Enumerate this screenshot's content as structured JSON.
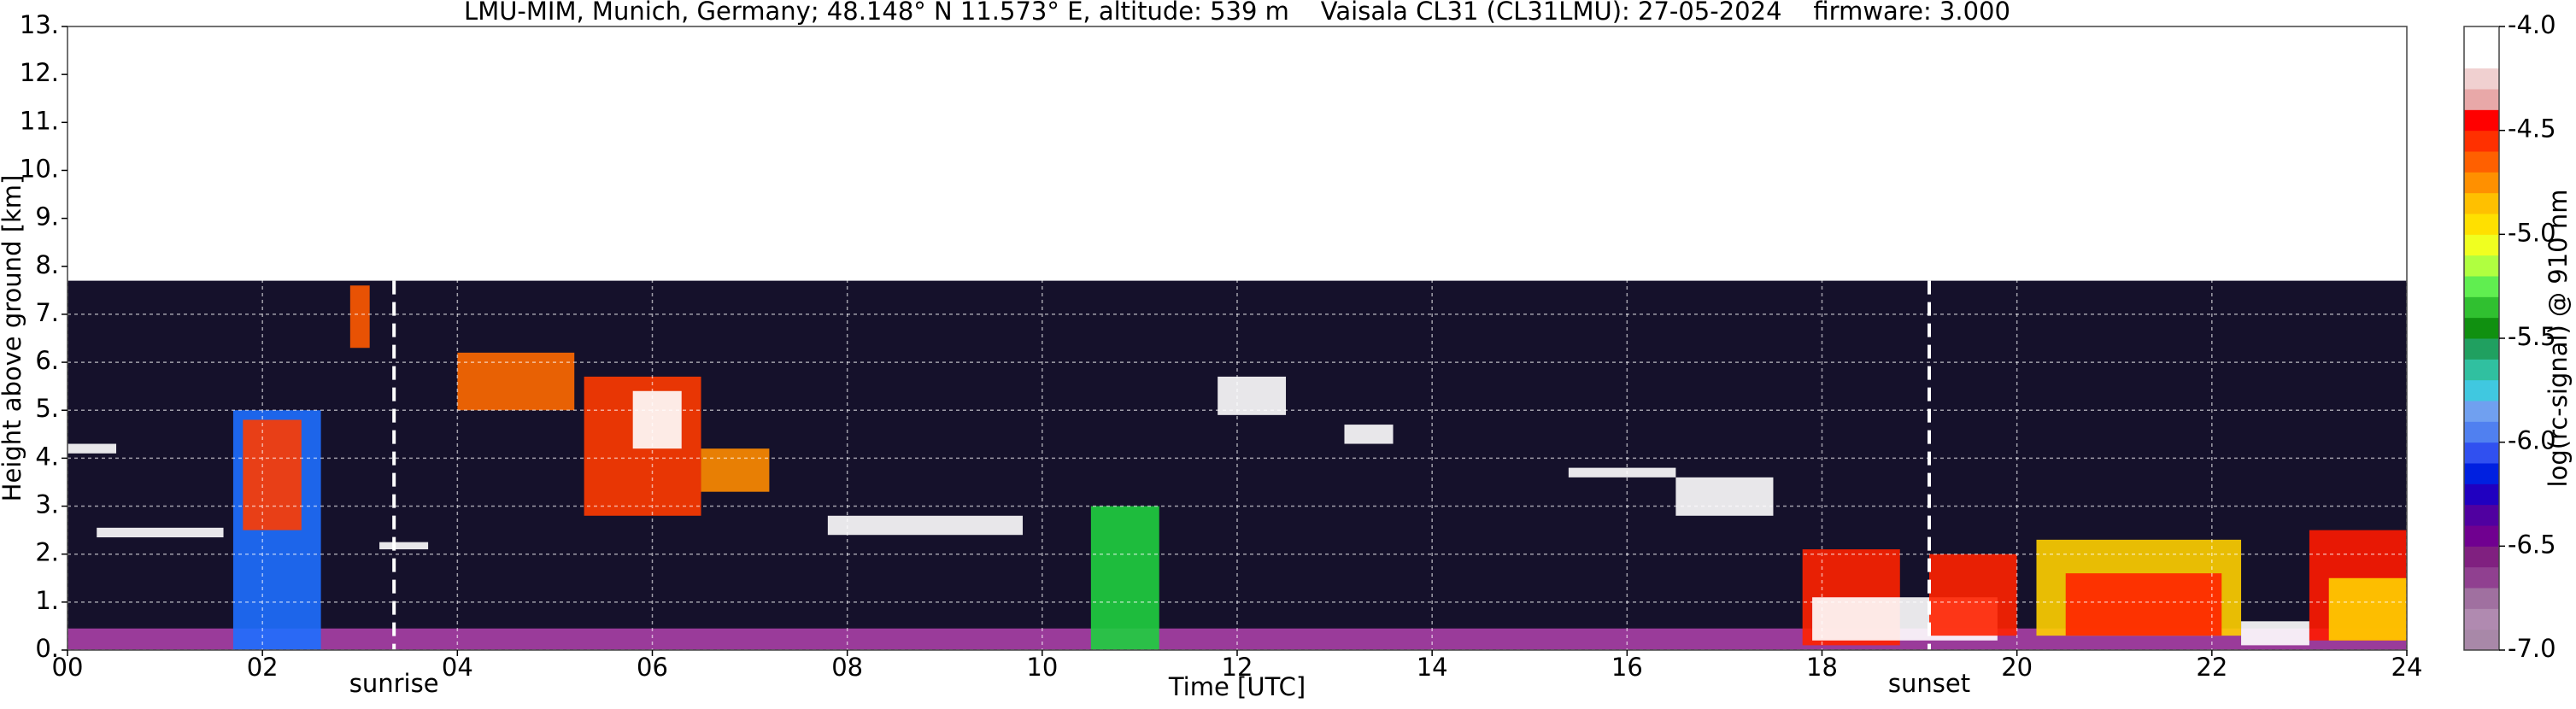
{
  "chart_data": {
    "type": "lidar",
    "title": "LMU-MIM, Munich, Germany; 48.148° N 11.573° E, altitude: 539 m    Vaisala CL31 (CL31LMU): 27-05-2024    firmware: 3.000",
    "xlabel": "Time [UTC]",
    "ylabel": "Height above ground [km]",
    "xlim": [
      0,
      24
    ],
    "xticks": [
      {
        "value": 0,
        "label": "00"
      },
      {
        "value": 2,
        "label": "02"
      },
      {
        "value": 4,
        "label": "04"
      },
      {
        "value": 6,
        "label": "06"
      },
      {
        "value": 8,
        "label": "08"
      },
      {
        "value": 10,
        "label": "10"
      },
      {
        "value": 12,
        "label": "12"
      },
      {
        "value": 14,
        "label": "14"
      },
      {
        "value": 16,
        "label": "16"
      },
      {
        "value": 18,
        "label": "18"
      },
      {
        "value": 20,
        "label": "20"
      },
      {
        "value": 22,
        "label": "22"
      },
      {
        "value": 24,
        "label": "24"
      }
    ],
    "ylim": [
      0,
      13
    ],
    "yticks": [
      {
        "value": 0,
        "label": "0."
      },
      {
        "value": 1,
        "label": "1."
      },
      {
        "value": 2,
        "label": "2."
      },
      {
        "value": 3,
        "label": "3."
      },
      {
        "value": 4,
        "label": "4."
      },
      {
        "value": 5,
        "label": "5."
      },
      {
        "value": 6,
        "label": "6."
      },
      {
        "value": 7,
        "label": "7."
      },
      {
        "value": 8,
        "label": "8."
      },
      {
        "value": 9,
        "label": "9."
      },
      {
        "value": 10,
        "label": "10."
      },
      {
        "value": 11,
        "label": "11."
      },
      {
        "value": 12,
        "label": "12."
      },
      {
        "value": 13,
        "label": "13."
      }
    ],
    "grid": true,
    "annotations": [
      {
        "label": "sunrise",
        "x": 3.35
      },
      {
        "label": "sunset",
        "x": 19.1
      }
    ],
    "cloud_patches": [
      {
        "x": [
          0,
          24
        ],
        "y": [
          0,
          7.7
        ],
        "color": "#15112b"
      },
      {
        "x": [
          0,
          24
        ],
        "y": [
          0,
          0.45
        ],
        "color": "#9a3b9a"
      },
      {
        "x": [
          0,
          0.5
        ],
        "y": [
          4.1,
          4.3
        ],
        "color": "#ffffff"
      },
      {
        "x": [
          0.3,
          1.6
        ],
        "y": [
          2.35,
          2.55
        ],
        "color": "#ffffff"
      },
      {
        "x": [
          1.7,
          2.6
        ],
        "y": [
          0,
          5
        ],
        "color": "#1e6fff"
      },
      {
        "x": [
          1.8,
          2.4
        ],
        "y": [
          2.5,
          4.8
        ],
        "color": "#ff3b00"
      },
      {
        "x": [
          2.9,
          3.1
        ],
        "y": [
          6.3,
          7.6
        ],
        "color": "#ff5a00"
      },
      {
        "x": [
          3.2,
          3.7
        ],
        "y": [
          2.1,
          2.25
        ],
        "color": "#ffffff"
      },
      {
        "x": [
          4.0,
          5.2
        ],
        "y": [
          5.0,
          6.2
        ],
        "color": "#ff6a00"
      },
      {
        "x": [
          5.3,
          6.5
        ],
        "y": [
          2.8,
          5.7
        ],
        "color": "#ff3b00"
      },
      {
        "x": [
          5.8,
          6.3
        ],
        "y": [
          4.2,
          5.4
        ],
        "color": "#ffffff"
      },
      {
        "x": [
          6.5,
          7.2
        ],
        "y": [
          3.3,
          4.2
        ],
        "color": "#ff8c00"
      },
      {
        "x": [
          7.8,
          9.8
        ],
        "y": [
          2.4,
          2.8
        ],
        "color": "#ffffff"
      },
      {
        "x": [
          10.5,
          11.2
        ],
        "y": [
          0,
          3
        ],
        "color": "#1fcf3f"
      },
      {
        "x": [
          11.8,
          12.5
        ],
        "y": [
          4.9,
          5.7
        ],
        "color": "#ffffff"
      },
      {
        "x": [
          13.1,
          13.6
        ],
        "y": [
          4.3,
          4.7
        ],
        "color": "#ffffff"
      },
      {
        "x": [
          15.4,
          16.5
        ],
        "y": [
          3.6,
          3.8
        ],
        "color": "#ffffff"
      },
      {
        "x": [
          16.5,
          17.5
        ],
        "y": [
          2.8,
          3.6
        ],
        "color": "#ffffff"
      },
      {
        "x": [
          17.8,
          18.8
        ],
        "y": [
          0.1,
          2.1
        ],
        "color": "#ff2200"
      },
      {
        "x": [
          17.9,
          19.8
        ],
        "y": [
          0.2,
          1.1
        ],
        "color": "#ffffff"
      },
      {
        "x": [
          19.1,
          20.0
        ],
        "y": [
          0.3,
          2.0
        ],
        "color": "#ff2200"
      },
      {
        "x": [
          20.2,
          22.3
        ],
        "y": [
          0.3,
          2.3
        ],
        "color": "#ffd000"
      },
      {
        "x": [
          20.5,
          22.1
        ],
        "y": [
          0.3,
          1.6
        ],
        "color": "#ff2200"
      },
      {
        "x": [
          22.3,
          23.0
        ],
        "y": [
          0.1,
          0.6
        ],
        "color": "#ffffff"
      },
      {
        "x": [
          23.0,
          24
        ],
        "y": [
          0.2,
          2.5
        ],
        "color": "#ff1a00"
      },
      {
        "x": [
          23.2,
          24
        ],
        "y": [
          0.2,
          1.5
        ],
        "color": "#ffd000"
      }
    ],
    "colorbar": {
      "label": "log(rc-signal) @ 910 nm",
      "lim": [
        -7,
        -4
      ],
      "ticks": [
        {
          "value": -7,
          "label": "-7.0"
        },
        {
          "value": -6.5,
          "label": "-6.5"
        },
        {
          "value": -6,
          "label": "-6.0"
        },
        {
          "value": -5.5,
          "label": "-5.5"
        },
        {
          "value": -5,
          "label": "-5.0"
        },
        {
          "value": -4.5,
          "label": "-4.5"
        },
        {
          "value": -4,
          "label": "-4.0"
        }
      ],
      "colors": [
        "#a888a8",
        "#b08ab0",
        "#a070a0",
        "#904090",
        "#802080",
        "#700090",
        "#5000a0",
        "#2000c0",
        "#0020e0",
        "#3050f0",
        "#5080f0",
        "#70a0f0",
        "#40c8e0",
        "#30c0a0",
        "#20a060",
        "#109010",
        "#30c030",
        "#60ee50",
        "#b0ff40",
        "#f0ff20",
        "#ffe000",
        "#ffc000",
        "#ff9000",
        "#ff6000",
        "#ff3000",
        "#ff0000",
        "#e8a8a8",
        "#f0d0d0",
        "#ffffff",
        "#ffffff"
      ]
    }
  }
}
